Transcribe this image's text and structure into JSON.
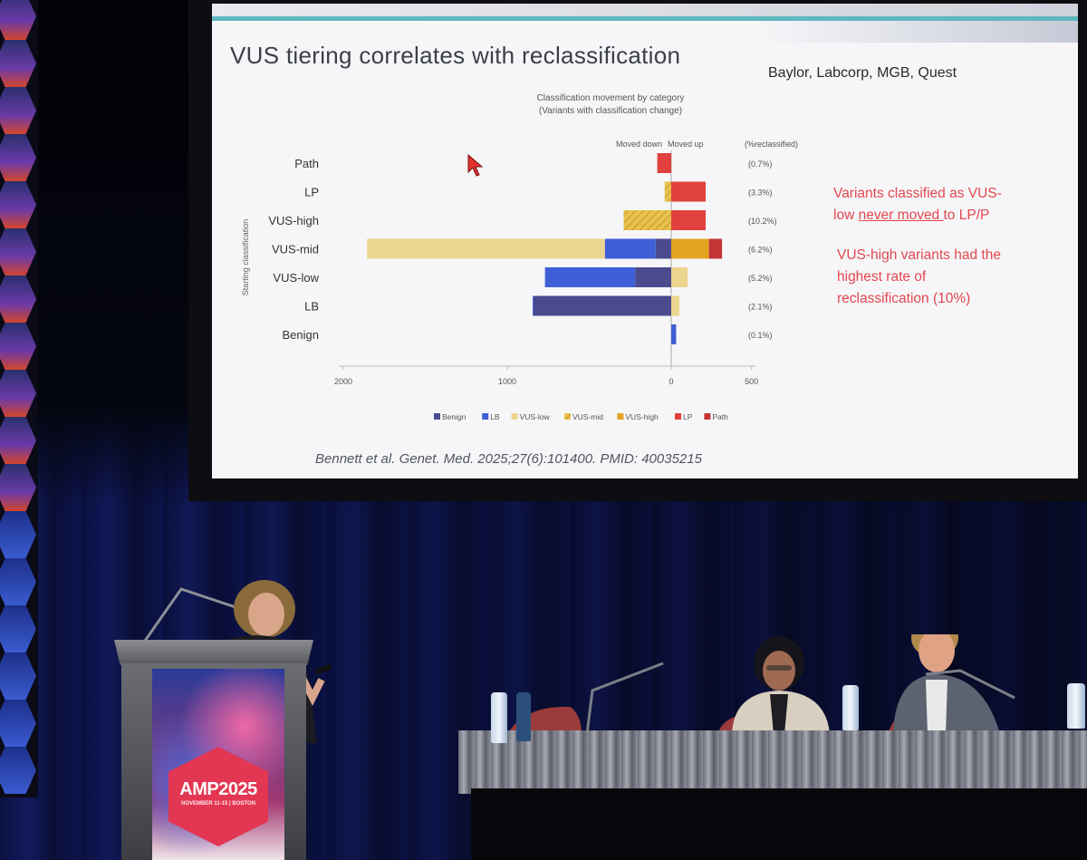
{
  "slide": {
    "title": "VUS tiering correlates with reclassification",
    "affiliations": "Baylor, Labcorp, MGB, Quest",
    "callout_1_line_1": "Variants classified as VUS-",
    "callout_1_line_2_pre": "low ",
    "callout_1_line_2_underlined": "never moved ",
    "callout_1_line_2_post": "to LP/P",
    "callout_2_line_1": "VUS-high variants had the",
    "callout_2_line_2": "highest rate of",
    "callout_2_line_3": "reclassification (10%)",
    "citation": "Bennett et al. Genet. Med. 2025;27(6):101400. PMID: 40035215",
    "accent_color": "#5fb7c0",
    "callout_color": "#e2474e"
  },
  "chart_data": {
    "type": "bar",
    "orientation": "horizontal-stacked-diverging",
    "title_line_1": "Classification movement by category",
    "title_line_2": "(Variants with classification change)",
    "left_header": "Moved down",
    "right_header": "Moved up",
    "pct_header": "(%reclassified)",
    "ylabel": "Starting classification",
    "x_ticks": [
      "2000",
      "1000",
      "0",
      "500"
    ],
    "x_tick_values": [
      2000,
      1000,
      0,
      500
    ],
    "xlim": [
      -2000,
      500
    ],
    "categories": [
      "Path",
      "LP",
      "VUS-high",
      "VUS-mid",
      "VUS-low",
      "LB",
      "Benign"
    ],
    "pct_reclassified": [
      "(0.7%)",
      "(3.3%)",
      "(10.2%)",
      "(6.2%)",
      "(5.2%)",
      "(2.1%)",
      "(0.1%)"
    ],
    "legend_position": "bottom",
    "series": [
      {
        "name": "Benign",
        "color": "#4b4a8f",
        "hatch": false,
        "values": [
          0,
          0,
          0,
          -95,
          -220,
          -840,
          0
        ]
      },
      {
        "name": "LB",
        "color": "#3f5fd6",
        "hatch": false,
        "values": [
          0,
          0,
          0,
          -310,
          -550,
          -5,
          30
        ]
      },
      {
        "name": "VUS-low",
        "color": "#ecd58f",
        "hatch": false,
        "values": [
          0,
          0,
          0,
          -1450,
          100,
          50,
          0
        ]
      },
      {
        "name": "VUS-mid",
        "color": "#e8c04f",
        "hatch": true,
        "values": [
          0,
          -40,
          -290,
          0,
          0,
          0,
          0
        ]
      },
      {
        "name": "VUS-high",
        "color": "#e2a422",
        "hatch": false,
        "values": [
          0,
          0,
          0,
          230,
          0,
          0,
          0
        ]
      },
      {
        "name": "LP",
        "color": "#e0403e",
        "hatch": false,
        "values": [
          -85,
          210,
          210,
          0,
          0,
          0,
          0
        ]
      },
      {
        "name": "Path",
        "color": "#c33436",
        "hatch": false,
        "values": [
          0,
          0,
          0,
          80,
          0,
          0,
          0
        ]
      }
    ]
  },
  "podium": {
    "logo_text": "AMP2025",
    "logo_subtext": "NOVEMBER 11-15 | BOSTON"
  }
}
